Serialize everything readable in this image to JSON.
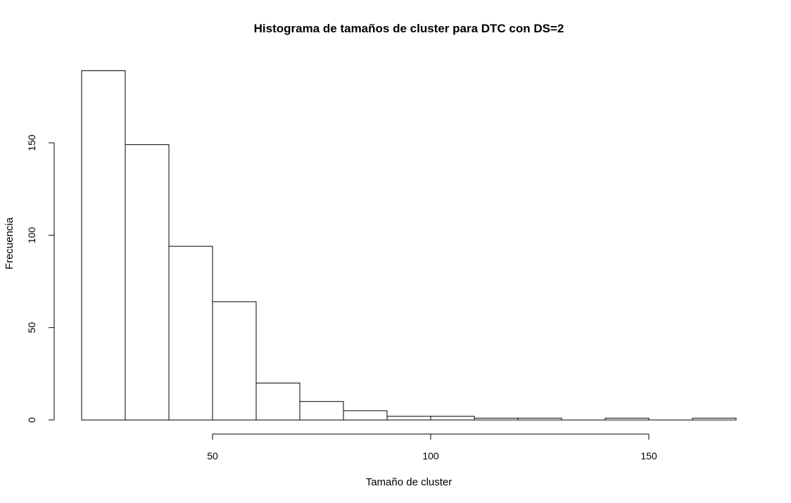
{
  "chart_data": {
    "type": "bar",
    "title": "Histograma de tamaños de cluster para DTC con DS=2",
    "xlabel": "Tamaño de cluster",
    "ylabel": "Frecuencia",
    "bins": [
      {
        "x0": 20,
        "x1": 30,
        "count": 189
      },
      {
        "x0": 30,
        "x1": 40,
        "count": 149
      },
      {
        "x0": 40,
        "x1": 50,
        "count": 94
      },
      {
        "x0": 50,
        "x1": 60,
        "count": 64
      },
      {
        "x0": 60,
        "x1": 70,
        "count": 20
      },
      {
        "x0": 70,
        "x1": 80,
        "count": 10
      },
      {
        "x0": 80,
        "x1": 90,
        "count": 5
      },
      {
        "x0": 90,
        "x1": 100,
        "count": 2
      },
      {
        "x0": 100,
        "x1": 110,
        "count": 2
      },
      {
        "x0": 110,
        "x1": 120,
        "count": 1
      },
      {
        "x0": 120,
        "x1": 130,
        "count": 1
      },
      {
        "x0": 130,
        "x1": 140,
        "count": 0
      },
      {
        "x0": 140,
        "x1": 150,
        "count": 1
      },
      {
        "x0": 150,
        "x1": 160,
        "count": 0
      },
      {
        "x0": 160,
        "x1": 170,
        "count": 1
      }
    ],
    "xlim": [
      20,
      170
    ],
    "ylim": [
      0,
      189
    ],
    "x_ticks": [
      50,
      100,
      150
    ],
    "y_ticks": [
      0,
      50,
      100,
      150
    ],
    "grid": false,
    "legend": "none",
    "bar_fill": "#ffffff",
    "bar_stroke": "#000000"
  }
}
